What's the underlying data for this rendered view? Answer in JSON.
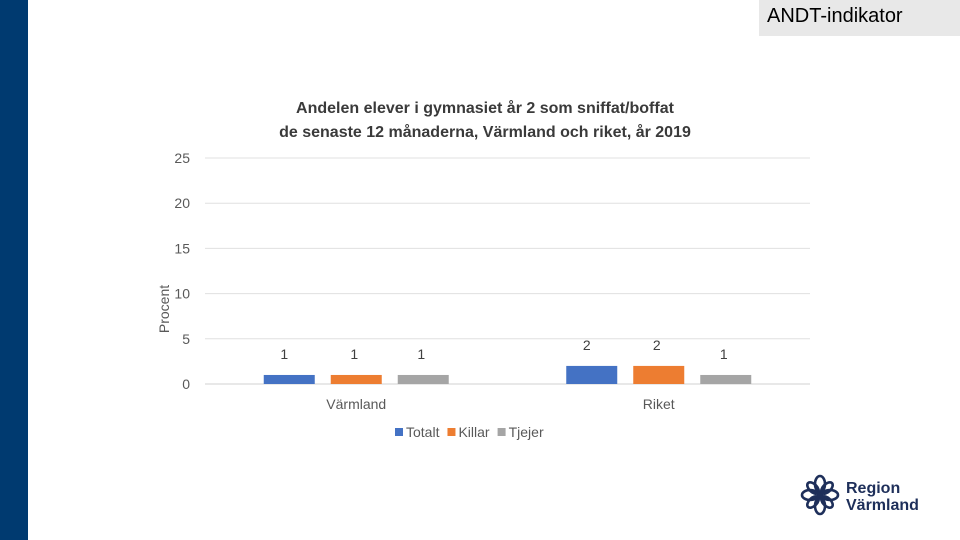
{
  "header": {
    "tag": "ANDT-indikator"
  },
  "chart_data": {
    "type": "bar",
    "title": "Andelen elever i gymnasiet år 2 som sniffat/boffat",
    "subtitle": "de senaste 12 månaderna, Värmland och riket, år 2019",
    "ylabel": "Procent",
    "xlabel": "",
    "ylim": [
      0,
      25
    ],
    "yticks": [
      0,
      5,
      10,
      15,
      20,
      25
    ],
    "grid": true,
    "legend": "bottom",
    "categories": [
      "Värmland",
      "Riket"
    ],
    "series": [
      {
        "name": "Totalt",
        "values": [
          1,
          2
        ],
        "color": "#4472c4"
      },
      {
        "name": "Killar",
        "values": [
          1,
          2
        ],
        "color": "#ed7d31"
      },
      {
        "name": "Tjejer",
        "values": [
          1,
          1
        ],
        "color": "#a5a5a5"
      }
    ]
  },
  "logo": {
    "line1": "Region",
    "line2": "Värmland",
    "icon": "star-flower-icon"
  }
}
